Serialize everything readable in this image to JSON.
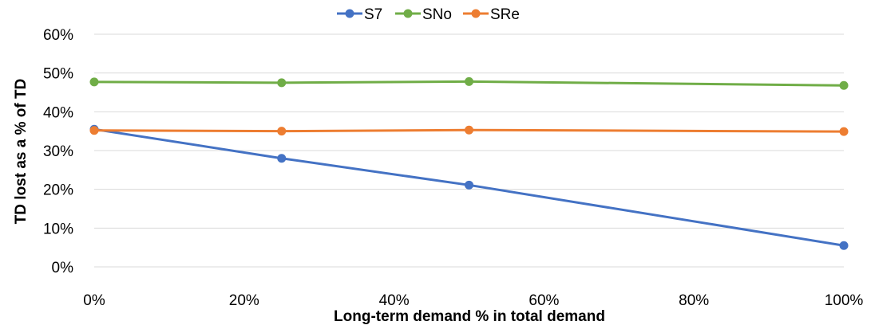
{
  "chart_data": {
    "type": "line",
    "title": "",
    "xlabel": "Long-term demand % in total demand",
    "ylabel": "TD lost as a % of TD",
    "x": [
      0,
      25,
      50,
      100
    ],
    "xlim": [
      0,
      100
    ],
    "ylim": [
      0,
      60
    ],
    "xticks": [
      0,
      20,
      40,
      60,
      80,
      100
    ],
    "xtick_labels": [
      "0%",
      "20%",
      "40%",
      "60%",
      "80%",
      "100%"
    ],
    "yticks": [
      0,
      10,
      20,
      30,
      40,
      50,
      60
    ],
    "ytick_labels": [
      "0%",
      "10%",
      "20%",
      "30%",
      "40%",
      "50%",
      "60%"
    ],
    "grid": "horizontal",
    "legend_position": "top",
    "series": [
      {
        "name": "S7",
        "color": "#4472C4",
        "values": [
          35.5,
          28.0,
          21.1,
          5.5
        ]
      },
      {
        "name": "SNo",
        "color": "#70AD47",
        "values": [
          47.7,
          47.5,
          47.8,
          46.8
        ]
      },
      {
        "name": "SRe",
        "color": "#ED7D31",
        "values": [
          35.2,
          35.0,
          35.3,
          34.9
        ]
      }
    ]
  }
}
